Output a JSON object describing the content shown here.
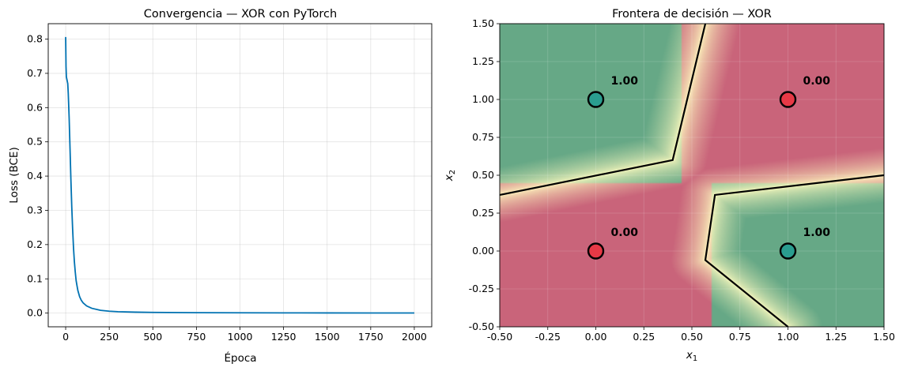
{
  "chart_data": [
    {
      "type": "line",
      "title": "Convergencia — XOR con PyTorch",
      "xlabel": "Época",
      "ylabel": "Loss (BCE)",
      "xlim": [
        -100,
        2100
      ],
      "ylim": [
        -0.04,
        0.845
      ],
      "xticks": [
        0,
        250,
        500,
        750,
        1000,
        1250,
        1500,
        1750,
        2000
      ],
      "yticks": [
        0.0,
        0.1,
        0.2,
        0.3,
        0.4,
        0.5,
        0.6,
        0.7,
        0.8
      ],
      "grid": true,
      "series": [
        {
          "color": "#0072b2",
          "x": [
            0,
            2,
            4,
            6,
            8,
            10,
            12,
            15,
            20,
            25,
            30,
            35,
            40,
            45,
            50,
            55,
            60,
            65,
            70,
            80,
            90,
            100,
            120,
            150,
            200,
            250,
            300,
            400,
            500,
            750,
            1000,
            1250,
            1500,
            1750,
            2000
          ],
          "y": [
            0.806,
            0.72,
            0.69,
            0.685,
            0.68,
            0.675,
            0.67,
            0.64,
            0.57,
            0.48,
            0.39,
            0.31,
            0.245,
            0.19,
            0.15,
            0.12,
            0.095,
            0.08,
            0.066,
            0.048,
            0.037,
            0.03,
            0.021,
            0.014,
            0.008,
            0.0055,
            0.004,
            0.0028,
            0.002,
            0.0012,
            0.0009,
            0.0007,
            0.0005,
            0.0004,
            0.0003
          ]
        }
      ]
    },
    {
      "type": "heatmap",
      "title": "Frontera de decisión — XOR",
      "xlabel": "x1",
      "ylabel": "x2",
      "xlim": [
        -0.5,
        1.5
      ],
      "ylim": [
        -0.5,
        1.5
      ],
      "xticks": [
        "-0.50",
        "-0.25",
        "0.00",
        "0.25",
        "0.50",
        "0.75",
        "1.00",
        "1.25",
        "1.50"
      ],
      "yticks": [
        "-0.50",
        "-0.25",
        "0.00",
        "0.25",
        "0.50",
        "0.75",
        "1.00",
        "1.25",
        "1.50"
      ],
      "colors": {
        "high": "#66a886",
        "low": "#c9647a",
        "mid": "#fffbc0",
        "boundary": "#000000"
      },
      "points": [
        {
          "x": 0,
          "y": 1,
          "label": "1.00",
          "class": 1
        },
        {
          "x": 1,
          "y": 1,
          "label": "0.00",
          "class": 0
        },
        {
          "x": 0,
          "y": 0,
          "label": "0.00",
          "class": 0
        },
        {
          "x": 1,
          "y": 0,
          "label": "1.00",
          "class": 1
        }
      ],
      "point_colors": {
        "1": "#2a9d8f",
        "0": "#e63946"
      },
      "boundary": [
        [
          [
            -0.5,
            0.37
          ],
          [
            0.4,
            0.6
          ],
          [
            0.57,
            1.5
          ]
        ],
        [
          [
            1.5,
            0.5
          ],
          [
            0.62,
            0.37
          ],
          [
            0.57,
            -0.06
          ],
          [
            1.0,
            -0.5
          ]
        ]
      ]
    }
  ]
}
